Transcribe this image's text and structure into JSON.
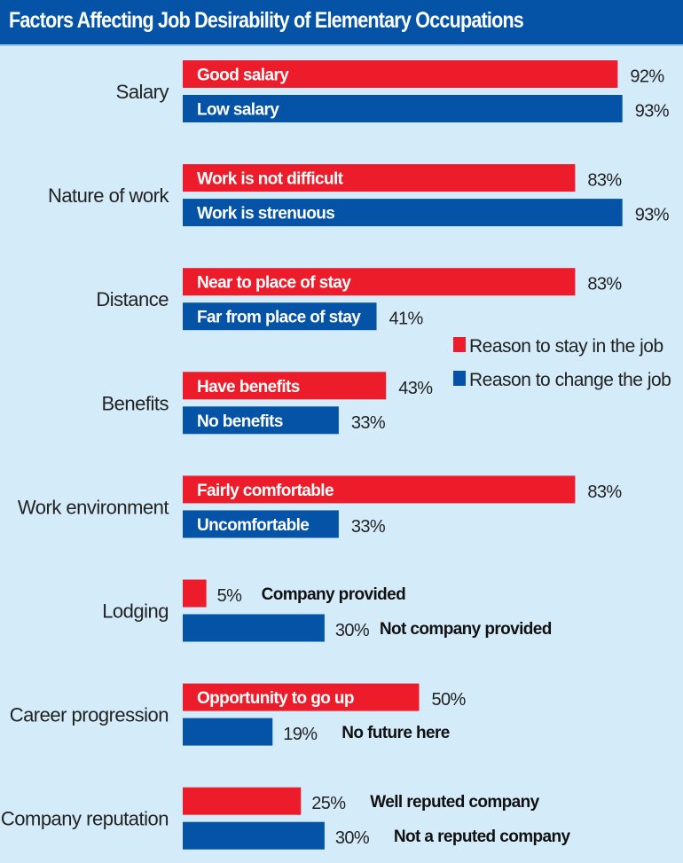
{
  "header": {
    "title": "Factors Affecting Job Desirability of Elementary Occupations"
  },
  "colors": {
    "header_bg": "#0553a6",
    "background": "#d4ecfa",
    "stay": "#ec1c2a",
    "change": "#0553a6"
  },
  "chart_data": {
    "type": "bar",
    "orientation": "horizontal",
    "title": "Factors Affecting Job Desirability of Elementary Occupations",
    "xlabel": "",
    "ylabel": "",
    "unit": "%",
    "xlim": [
      0,
      100
    ],
    "grid": false,
    "legend_position": "right-middle",
    "categories": [
      "Salary",
      "Nature of work",
      "Distance",
      "Benefits",
      "Work environment",
      "Lodging",
      "Career progression",
      "Company reputation"
    ],
    "series": [
      {
        "name": "Reason to stay in the job",
        "color": "#ec1c2a",
        "values": [
          92,
          83,
          83,
          43,
          83,
          5,
          50,
          25
        ],
        "bar_labels": [
          "Good salary",
          "Work is not difficult",
          "Near to place of stay",
          "Have benefits",
          "Fairly comfortable",
          "Company provided",
          "Opportunity to go up",
          "Well reputed company"
        ],
        "label_inside": [
          true,
          true,
          true,
          true,
          true,
          false,
          true,
          false
        ]
      },
      {
        "name": "Reason to change the job",
        "color": "#0553a6",
        "values": [
          93,
          93,
          41,
          33,
          33,
          30,
          19,
          30
        ],
        "bar_labels": [
          "Low salary",
          "Work is strenuous",
          "Far from place of stay",
          "No benefits",
          "Uncomfortable",
          "Not company provided",
          "No future here",
          "Not a reputed company"
        ],
        "label_inside": [
          true,
          true,
          true,
          true,
          true,
          false,
          false,
          false
        ]
      }
    ],
    "legend": [
      {
        "label": "Reason to stay in the job",
        "color": "#ec1c2a"
      },
      {
        "label": "Reason to change the job",
        "color": "#0553a6"
      }
    ]
  }
}
